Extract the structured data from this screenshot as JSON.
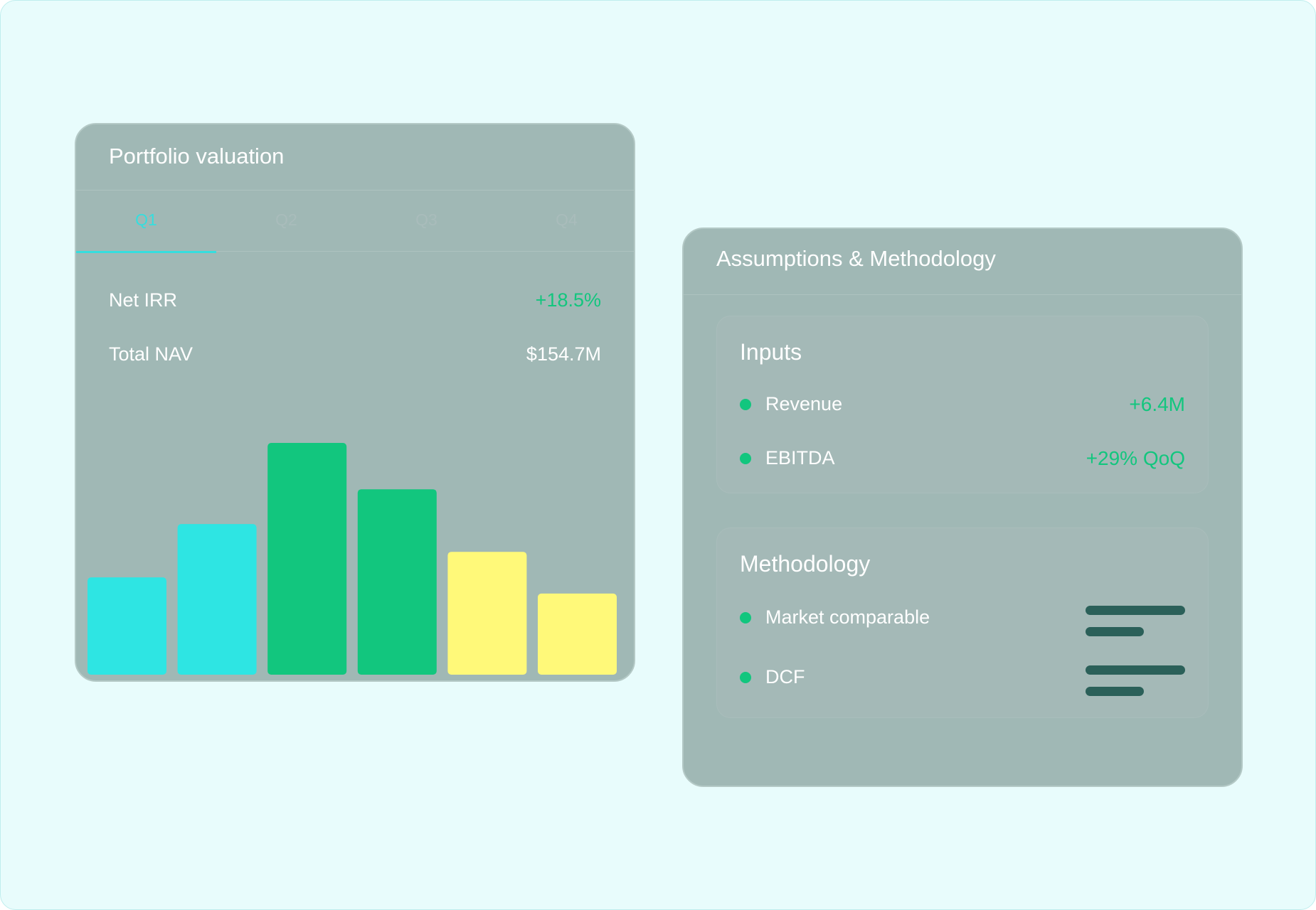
{
  "colors": {
    "accent_cyan": "#35dede",
    "accent_green": "#12c67e",
    "accent_yellow": "#fff979",
    "card_bg": "#a0b8b5",
    "page_bg": "#e8fcfc",
    "skeleton": "#2b6059"
  },
  "valuation_card": {
    "title": "Portfolio valuation",
    "tabs": [
      {
        "label": "Q1",
        "active": true
      },
      {
        "label": "Q2",
        "active": false
      },
      {
        "label": "Q3",
        "active": false
      },
      {
        "label": "Q4",
        "active": false
      }
    ],
    "metrics": [
      {
        "label": "Net IRR",
        "value": "+18.5%",
        "positive": true
      },
      {
        "label": "Total NAV",
        "value": "$154.7M",
        "positive": false
      }
    ]
  },
  "chart_data": {
    "type": "bar",
    "title": "",
    "xlabel": "",
    "ylabel": "",
    "grid": false,
    "ylim": [
      0,
      100
    ],
    "values": [
      42,
      65,
      100,
      80,
      53,
      35
    ],
    "bar_colors": [
      "#2ee5e3",
      "#2ee5e3",
      "#12c67e",
      "#12c67e",
      "#fff979",
      "#fff979"
    ]
  },
  "methodology_card": {
    "title": "Assumptions & Methodology",
    "inputs_panel": {
      "title": "Inputs",
      "items": [
        {
          "label": "Revenue",
          "value": "+6.4M"
        },
        {
          "label": "EBITDA",
          "value": "+29% QoQ"
        }
      ]
    },
    "methodology_panel": {
      "title": "Methodology",
      "items": [
        {
          "label": "Market comparable"
        },
        {
          "label": "DCF"
        }
      ]
    }
  }
}
